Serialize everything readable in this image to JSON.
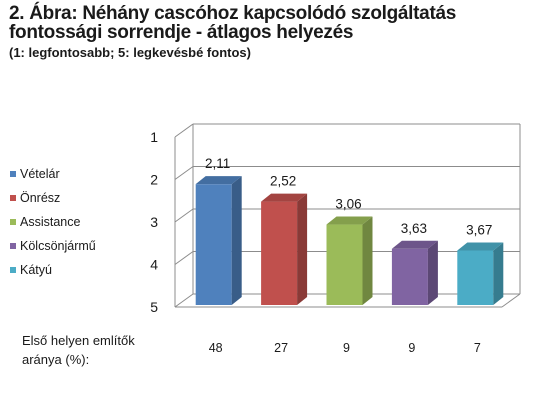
{
  "chart_data": {
    "type": "bar",
    "title_line1": "2. Ábra: Néhány cascóhoz kapcsolódó szolgáltatás",
    "title_line2": "fontossági sorrendje - átlagos helyezés",
    "subtitle": "(1: legfontosabb; 5: legkevésbé fontos)",
    "categories": [
      "Vételár",
      "Önrész",
      "Assistance",
      "Kölcsönjármű",
      "Kátyú"
    ],
    "values": [
      2.11,
      2.52,
      3.06,
      3.63,
      3.67
    ],
    "value_labels": [
      "2,11",
      "2,52",
      "3,06",
      "3,63",
      "3,67"
    ],
    "colors": [
      "#4f81bd",
      "#c0504d",
      "#9bbb59",
      "#8064a2",
      "#4bacc6"
    ],
    "y_ticks": [
      "1",
      "2",
      "3",
      "4",
      "5"
    ],
    "ylim": [
      1,
      5
    ],
    "y_inverted": true,
    "legend_position": "left",
    "footer": {
      "label_line1": "Első helyen említők",
      "label_line2": "aránya (%):",
      "values": [
        "48",
        "27",
        "9",
        "9",
        "7"
      ]
    }
  }
}
